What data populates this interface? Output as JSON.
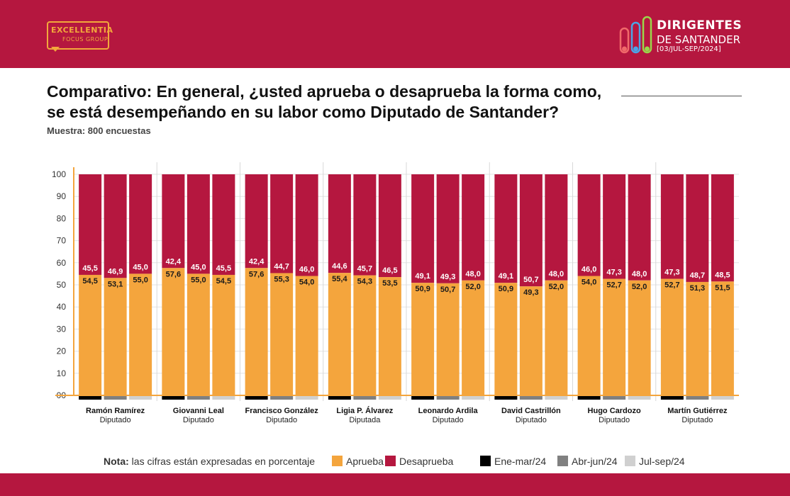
{
  "header": {
    "left_logo": {
      "name": "EXCELLENTIA",
      "sub": "FOCUS GROUP"
    },
    "right_logo": {
      "line1": "DIRIGENTES",
      "line2": "DE SANTANDER",
      "line3": "[03/JUL-SEP/2024]"
    }
  },
  "title": "Comparativo: En general, ¿usted aprueba o desaprueba la forma como, se está desempeñando en su labor como Diputado de Santander?",
  "subtitle": "Muestra: 800 encuestas",
  "note": {
    "label": "Nota:",
    "text": " las cifras están expresadas en porcentaje"
  },
  "legend": [
    {
      "label": "Aprueba",
      "color": "#f4a53d"
    },
    {
      "label": "Desaprueba",
      "color": "#b5173f"
    },
    {
      "label": "Ene-mar/24",
      "color": "#000000"
    },
    {
      "label": "Abr-jun/24",
      "color": "#808080"
    },
    {
      "label": "Jul-sep/24",
      "color": "#d0d0d0"
    }
  ],
  "colors": {
    "approve": "#f4a53d",
    "disapprove": "#b5173f",
    "axis": "#f4a53d",
    "grid": "#e3e3e3"
  },
  "chart_data": {
    "type": "bar",
    "stacked": true,
    "ylim": [
      0,
      100
    ],
    "yticks": [
      "00",
      "10",
      "20",
      "30",
      "40",
      "50",
      "60",
      "70",
      "80",
      "90",
      "100"
    ],
    "periods": [
      "Ene-mar/24",
      "Abr-jun/24",
      "Jul-sep/24"
    ],
    "period_colors": [
      "#000000",
      "#808080",
      "#d0d0d0"
    ],
    "groups": [
      {
        "name": "Ramón Ramírez",
        "role": "Diputado",
        "aprueba": [
          "54,5",
          "53,1",
          "55,0"
        ],
        "desaprueba": [
          "45,5",
          "46,9",
          "45,0"
        ]
      },
      {
        "name": "Giovanni Leal",
        "role": "Diputado",
        "aprueba": [
          "57,6",
          "55,0",
          "54,5"
        ],
        "desaprueba": [
          "42,4",
          "45,0",
          "45,5"
        ]
      },
      {
        "name": "Francisco González",
        "role": "Diputado",
        "aprueba": [
          "57,6",
          "55,3",
          "54,0"
        ],
        "desaprueba": [
          "42,4",
          "44,7",
          "46,0"
        ]
      },
      {
        "name": "Ligia P. Álvarez",
        "role": "Diputada",
        "aprueba": [
          "55,4",
          "54,3",
          "53,5"
        ],
        "desaprueba": [
          "44,6",
          "45,7",
          "46,5"
        ]
      },
      {
        "name": "Leonardo Ardila",
        "role": "Diputado",
        "aprueba": [
          "50,9",
          "50,7",
          "52,0"
        ],
        "desaprueba": [
          "49,1",
          "49,3",
          "48,0"
        ]
      },
      {
        "name": "David Castrillón",
        "role": "Diputado",
        "aprueba": [
          "50,9",
          "49,3",
          "52,0"
        ],
        "desaprueba": [
          "49,1",
          "50,7",
          "48,0"
        ]
      },
      {
        "name": "Hugo Cardozo",
        "role": "Diputado",
        "aprueba": [
          "54,0",
          "52,7",
          "52,0"
        ],
        "desaprueba": [
          "46,0",
          "47,3",
          "48,0"
        ]
      },
      {
        "name": "Martín Gutiérrez",
        "role": "Diputado",
        "aprueba": [
          "52,7",
          "51,3",
          "51,5"
        ],
        "desaprueba": [
          "47,3",
          "48,7",
          "48,5"
        ]
      }
    ]
  }
}
